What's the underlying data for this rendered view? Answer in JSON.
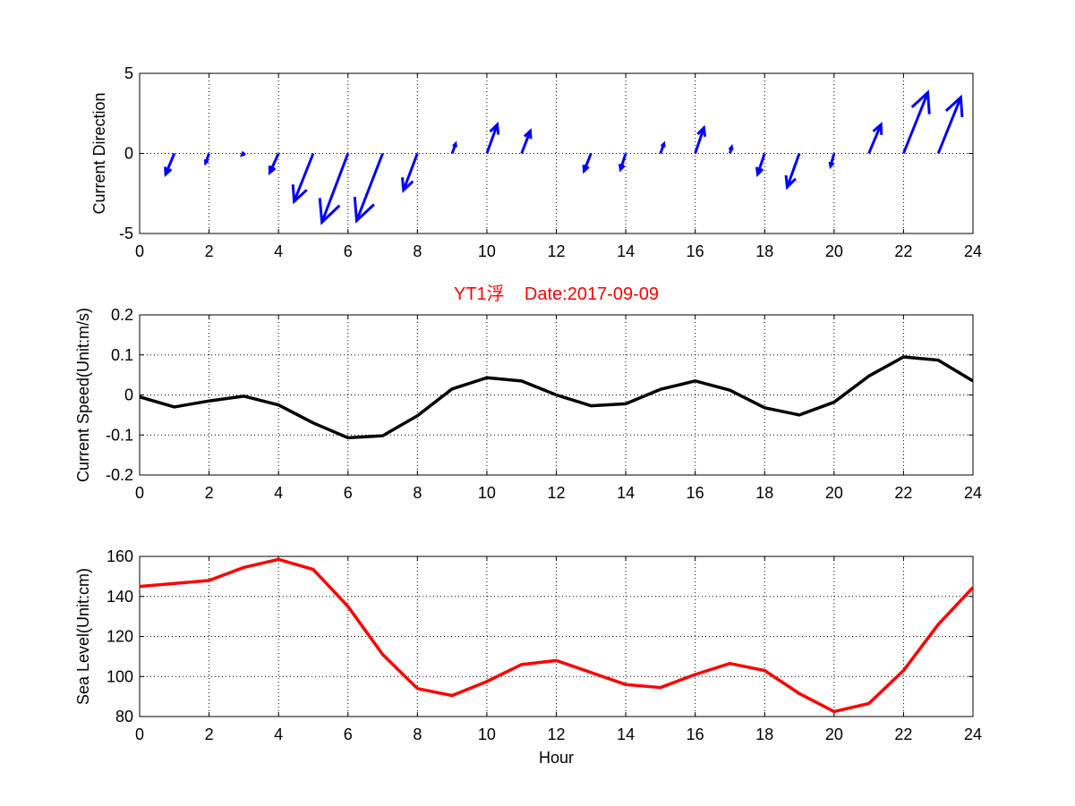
{
  "chart_data": [
    {
      "type": "quiver",
      "title": "",
      "xlabel": "",
      "ylabel": "Current Direction",
      "xlim": [
        0,
        24
      ],
      "ylim": [
        -5,
        5
      ],
      "xticks": [
        0,
        2,
        4,
        6,
        8,
        10,
        12,
        14,
        16,
        18,
        20,
        22,
        24
      ],
      "yticks": [
        -5,
        0,
        5
      ],
      "grid": true,
      "color": "#0000ff",
      "vectors": [
        {
          "x": 1,
          "u": -0.25,
          "v": -1.3
        },
        {
          "x": 2,
          "u": -0.1,
          "v": -0.6
        },
        {
          "x": 3,
          "u": -0.05,
          "v": -0.1
        },
        {
          "x": 4,
          "u": -0.25,
          "v": -1.2
        },
        {
          "x": 5,
          "u": -0.55,
          "v": -3.0
        },
        {
          "x": 6,
          "u": -0.75,
          "v": -4.3
        },
        {
          "x": 7,
          "u": -0.75,
          "v": -4.2
        },
        {
          "x": 8,
          "u": -0.4,
          "v": -2.3
        },
        {
          "x": 9,
          "u": 0.1,
          "v": 0.6
        },
        {
          "x": 10,
          "u": 0.3,
          "v": 1.8
        },
        {
          "x": 11,
          "u": 0.25,
          "v": 1.4
        },
        {
          "x": 12,
          "u": 0.0,
          "v": 0.0
        },
        {
          "x": 13,
          "u": -0.2,
          "v": -1.1
        },
        {
          "x": 14,
          "u": -0.15,
          "v": -1.0
        },
        {
          "x": 15,
          "u": 0.1,
          "v": 0.6
        },
        {
          "x": 16,
          "u": 0.25,
          "v": 1.6
        },
        {
          "x": 17,
          "u": 0.05,
          "v": 0.4
        },
        {
          "x": 18,
          "u": -0.2,
          "v": -1.3
        },
        {
          "x": 19,
          "u": -0.35,
          "v": -2.1
        },
        {
          "x": 20,
          "u": -0.1,
          "v": -0.8
        },
        {
          "x": 21,
          "u": 0.35,
          "v": 1.8
        },
        {
          "x": 22,
          "u": 0.7,
          "v": 3.8
        },
        {
          "x": 23,
          "u": 0.65,
          "v": 3.5
        }
      ]
    },
    {
      "type": "line",
      "title": "YT1浮    Date:2017-09-09",
      "title_color": "#ff0000",
      "xlabel": "",
      "ylabel": "Current Speed(Unit:m/s)",
      "xlim": [
        0,
        24
      ],
      "ylim": [
        -0.2,
        0.2
      ],
      "xticks": [
        0,
        2,
        4,
        6,
        8,
        10,
        12,
        14,
        16,
        18,
        20,
        22,
        24
      ],
      "yticks": [
        -0.2,
        -0.1,
        0,
        0.1,
        0.2
      ],
      "grid": true,
      "series": [
        {
          "color": "#000000",
          "x": [
            0,
            1,
            2,
            3,
            4,
            5,
            6,
            7,
            8,
            9,
            10,
            11,
            12,
            13,
            14,
            15,
            16,
            17,
            18,
            19,
            20,
            21,
            22,
            23,
            24
          ],
          "values": [
            -0.005,
            -0.03,
            -0.015,
            -0.003,
            -0.025,
            -0.07,
            -0.107,
            -0.102,
            -0.052,
            0.015,
            0.043,
            0.035,
            0.0,
            -0.027,
            -0.022,
            0.014,
            0.035,
            0.012,
            -0.032,
            -0.05,
            -0.018,
            0.047,
            0.095,
            0.087,
            0.035
          ]
        }
      ]
    },
    {
      "type": "line",
      "title": "",
      "xlabel": "Hour",
      "ylabel": "Sea Level(Unit:cm)",
      "xlim": [
        0,
        24
      ],
      "ylim": [
        80,
        160
      ],
      "xticks": [
        0,
        2,
        4,
        6,
        8,
        10,
        12,
        14,
        16,
        18,
        20,
        22,
        24
      ],
      "yticks": [
        80,
        100,
        120,
        140,
        160
      ],
      "grid": true,
      "series": [
        {
          "color": "#ff0000",
          "x": [
            0,
            1,
            2,
            3,
            4,
            5,
            6,
            7,
            8,
            9,
            10,
            11,
            12,
            13,
            14,
            15,
            16,
            17,
            18,
            19,
            20,
            21,
            22,
            23,
            24
          ],
          "values": [
            145,
            146.5,
            148,
            154.5,
            158.5,
            153.5,
            135,
            111,
            94,
            90.5,
            97.5,
            106,
            108,
            102,
            96,
            94.5,
            101,
            106.5,
            103,
            91.5,
            82.5,
            86.5,
            103,
            126,
            144.5
          ]
        }
      ]
    }
  ]
}
